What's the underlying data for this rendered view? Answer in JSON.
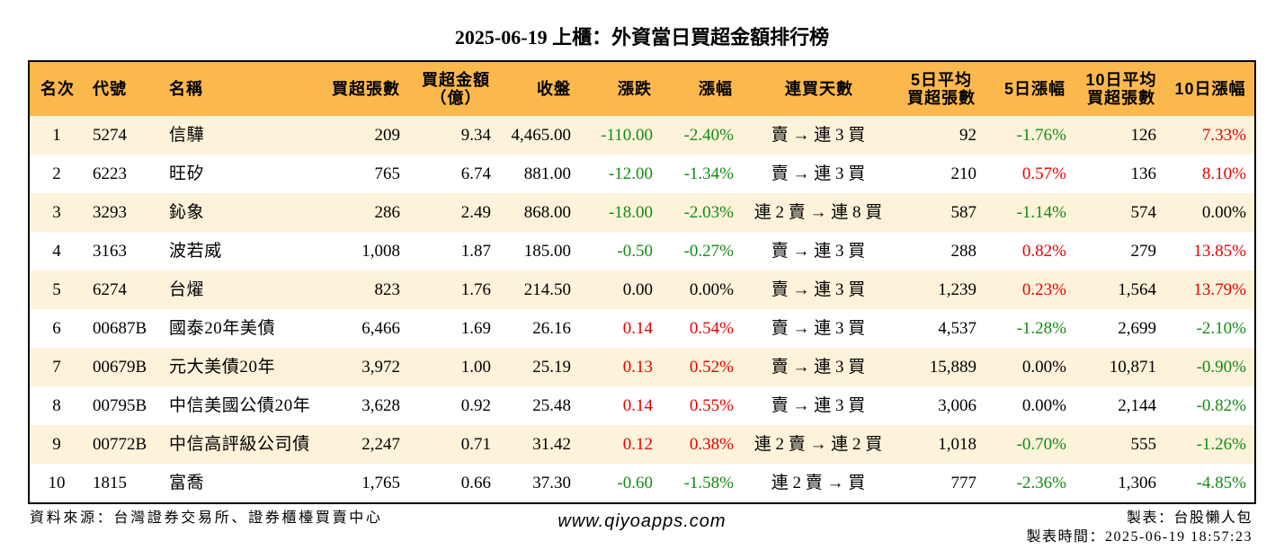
{
  "chart_data": {
    "type": "table",
    "title": "2025-06-19 上櫃：外資當日買超金額排行榜",
    "columns": [
      [
        "名次"
      ],
      [
        "代號"
      ],
      [
        "名稱"
      ],
      [
        "買超張數"
      ],
      [
        "買超金額",
        "（億）"
      ],
      [
        "收盤"
      ],
      [
        "漲跌"
      ],
      [
        "漲幅"
      ],
      [
        "連買天數"
      ],
      [
        "5日平均",
        "買超張數"
      ],
      [
        "5日漲幅"
      ],
      [
        "10日平均",
        "買超張數"
      ],
      [
        "10日漲幅"
      ]
    ],
    "rows": [
      [
        "1",
        "5274",
        "信驊",
        "209",
        "9.34",
        "4,465.00",
        "-110.00",
        "-2.40%",
        "賣 → 連 3 買",
        "92",
        "-1.76%",
        "126",
        "7.33%"
      ],
      [
        "2",
        "6223",
        "旺矽",
        "765",
        "6.74",
        "881.00",
        "-12.00",
        "-1.34%",
        "賣 → 連 3 買",
        "210",
        "0.57%",
        "136",
        "8.10%"
      ],
      [
        "3",
        "3293",
        "鈊象",
        "286",
        "2.49",
        "868.00",
        "-18.00",
        "-2.03%",
        "連 2 賣 → 連 8 買",
        "587",
        "-1.14%",
        "574",
        "0.00%"
      ],
      [
        "4",
        "3163",
        "波若威",
        "1,008",
        "1.87",
        "185.00",
        "-0.50",
        "-0.27%",
        "賣 → 連 3 買",
        "288",
        "0.82%",
        "279",
        "13.85%"
      ],
      [
        "5",
        "6274",
        "台燿",
        "823",
        "1.76",
        "214.50",
        "0.00",
        "0.00%",
        "賣 → 連 3 買",
        "1,239",
        "0.23%",
        "1,564",
        "13.79%"
      ],
      [
        "6",
        "00687B",
        "國泰20年美債",
        "6,466",
        "1.69",
        "26.16",
        "0.14",
        "0.54%",
        "賣 → 連 3 買",
        "4,537",
        "-1.28%",
        "2,699",
        "-2.10%"
      ],
      [
        "7",
        "00679B",
        "元大美債20年",
        "3,972",
        "1.00",
        "25.19",
        "0.13",
        "0.52%",
        "賣 → 連 3 買",
        "15,889",
        "0.00%",
        "10,871",
        "-0.90%"
      ],
      [
        "8",
        "00795B",
        "中信美國公債20年",
        "3,628",
        "0.92",
        "25.48",
        "0.14",
        "0.55%",
        "賣 → 連 3 買",
        "3,006",
        "0.00%",
        "2,144",
        "-0.82%"
      ],
      [
        "9",
        "00772B",
        "中信高評級公司債",
        "2,247",
        "0.71",
        "31.42",
        "0.12",
        "0.38%",
        "連 2 賣 → 連 2 買",
        "1,018",
        "-0.70%",
        "555",
        "-1.26%"
      ],
      [
        "10",
        "1815",
        "富喬",
        "1,765",
        "0.66",
        "37.30",
        "-0.60",
        "-1.58%",
        "連 2 賣 → 買",
        "777",
        "-2.36%",
        "1,306",
        "-4.85%"
      ]
    ]
  },
  "footer": {
    "source": "資料來源：台灣證券交易所、證券櫃檯買賣中心",
    "website": "www.qiyoapps.com",
    "maker": "製表：台股懶人包",
    "made_time": "製表時間：2025-06-19 18:57:23"
  },
  "colors": {
    "up": "#e60000",
    "down": "#138b13",
    "flat": "#000000",
    "header_bg": "#fbb84c",
    "row_alt_bg": "#fdf2da"
  }
}
